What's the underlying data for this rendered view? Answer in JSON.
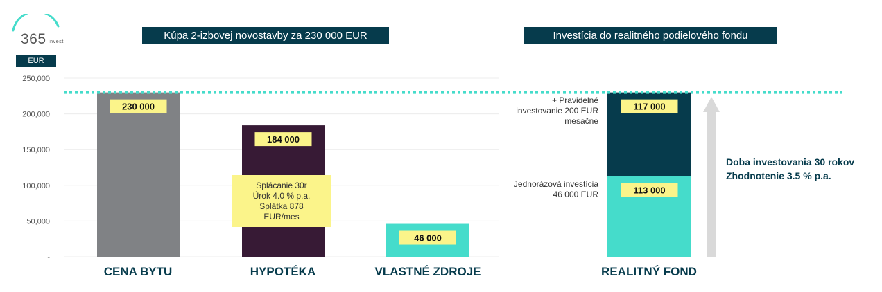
{
  "logo": {
    "number": "365",
    "sub": "invest"
  },
  "titles": {
    "left": "Kúpa 2-izbovej novostavby za 230 000 EUR",
    "right": "Investícia do realitného podielového fondu"
  },
  "unit_label": "EUR",
  "colors": {
    "dark_teal": "#063b4c",
    "turquoise": "#45dccb",
    "grey": "#808285",
    "plum": "#371a35",
    "label_yellow": "#fbf48a",
    "arrow_grey": "#d9d9d9"
  },
  "chart_data": {
    "type": "bar",
    "ylim": [
      0,
      250000
    ],
    "yticks": [
      {
        "value": 0,
        "label": "-"
      },
      {
        "value": 50000,
        "label": "50,000"
      },
      {
        "value": 100000,
        "label": "100,000"
      },
      {
        "value": 150000,
        "label": "150,000"
      },
      {
        "value": 200000,
        "label": "200,000"
      },
      {
        "value": 250000,
        "label": "250,000"
      }
    ],
    "reference_line": 230000,
    "categories": [
      "CENA BYTU",
      "HYPOTÉKA",
      "VLASTNÉ ZDROJE",
      "REALITNÝ FOND"
    ],
    "bars": [
      {
        "category": "CENA BYTU",
        "value": 230000,
        "label": "230 000",
        "color": "#808285"
      },
      {
        "category": "HYPOTÉKA",
        "value": 184000,
        "label": "184 000",
        "color": "#371a35"
      },
      {
        "category": "VLASTNÉ ZDROJE",
        "value": 46000,
        "label": "46 000",
        "color": "#45dccb"
      }
    ],
    "stacked": {
      "category": "REALITNÝ FOND",
      "segments": [
        {
          "name": "Jednorázová investícia 46 000 EUR",
          "value": 113000,
          "label": "113 000",
          "color": "#45dccb"
        },
        {
          "name": "+ Pravidelné investovanie 200 EUR mesačne",
          "value": 117000,
          "label": "117 000",
          "color": "#063b4c"
        }
      ]
    }
  },
  "mortgage_note": "Splácanie 30r Úrok 4.0 % p.a. Splátka 878 EUR/mes",
  "fund_labels": {
    "regular": "+ Pravidelné investovanie 200 EUR mesačne",
    "lump": "Jednorázová investícia 46 000 EUR"
  },
  "info": {
    "line1": "Doba investovania 30 rokov",
    "line2": "Zhodnotenie 3.5 % p.a."
  }
}
